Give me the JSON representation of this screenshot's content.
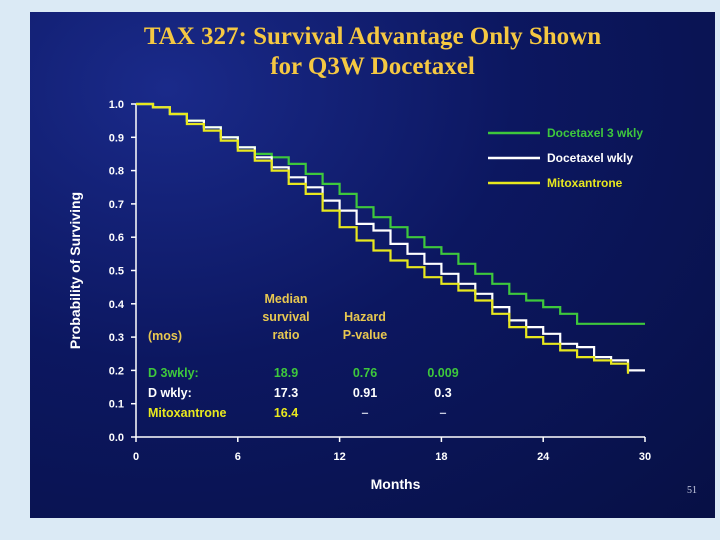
{
  "slide": {
    "title_line1": "TAX 327:  Survival Advantage Only Shown",
    "title_line2": "for Q3W Docetaxel",
    "slide_number": "51"
  },
  "colors": {
    "green": "#3ec83c",
    "white": "#ffffff",
    "yellow": "#e8e81e",
    "title": "#f5c842",
    "table_header": "#e8c850"
  },
  "chart_data": {
    "type": "line",
    "title": "TAX 327:  Survival Advantage Only Shown for Q3W Docetaxel",
    "xlabel": "Months",
    "ylabel": "Probability of Surviving",
    "xlim": [
      0,
      30
    ],
    "ylim": [
      0,
      1
    ],
    "x_ticks": [
      "0",
      "6",
      "12",
      "18",
      "24",
      "30"
    ],
    "y_ticks": [
      "0.0",
      "0.1",
      "0.2",
      "0.3",
      "0.4",
      "0.5",
      "0.6",
      "0.7",
      "0.8",
      "0.9",
      "1.0"
    ],
    "legend_position": "top-right",
    "series": [
      {
        "name": "Docetaxel 3 wkly",
        "color": "#3ec83c",
        "x": [
          0,
          1,
          2,
          3,
          4,
          5,
          6,
          7,
          8,
          9,
          10,
          11,
          12,
          13,
          14,
          15,
          16,
          17,
          18,
          19,
          20,
          21,
          22,
          23,
          24,
          25,
          26,
          27,
          28,
          29,
          30
        ],
        "y": [
          1.0,
          0.99,
          0.97,
          0.95,
          0.93,
          0.9,
          0.87,
          0.85,
          0.84,
          0.82,
          0.79,
          0.76,
          0.73,
          0.69,
          0.66,
          0.63,
          0.6,
          0.57,
          0.55,
          0.52,
          0.49,
          0.46,
          0.43,
          0.41,
          0.39,
          0.37,
          0.34,
          0.34,
          0.34,
          0.34,
          0.34
        ]
      },
      {
        "name": "Docetaxel wkly",
        "color": "#ffffff",
        "x": [
          0,
          1,
          2,
          3,
          4,
          5,
          6,
          7,
          8,
          9,
          10,
          11,
          12,
          13,
          14,
          15,
          16,
          17,
          18,
          19,
          20,
          21,
          22,
          23,
          24,
          25,
          26,
          27,
          28,
          29,
          30
        ],
        "y": [
          1.0,
          0.99,
          0.97,
          0.95,
          0.93,
          0.9,
          0.87,
          0.84,
          0.81,
          0.78,
          0.75,
          0.71,
          0.68,
          0.64,
          0.62,
          0.58,
          0.55,
          0.52,
          0.49,
          0.46,
          0.43,
          0.39,
          0.35,
          0.33,
          0.31,
          0.28,
          0.27,
          0.24,
          0.23,
          0.2,
          0.2
        ]
      },
      {
        "name": "Mitoxantrone",
        "color": "#e8e81e",
        "x": [
          0,
          1,
          2,
          3,
          4,
          5,
          6,
          7,
          8,
          9,
          10,
          11,
          12,
          13,
          14,
          15,
          16,
          17,
          18,
          19,
          20,
          21,
          22,
          23,
          24,
          25,
          26,
          27,
          28,
          29
        ],
        "y": [
          1.0,
          0.99,
          0.97,
          0.94,
          0.92,
          0.89,
          0.86,
          0.83,
          0.8,
          0.76,
          0.73,
          0.68,
          0.63,
          0.59,
          0.56,
          0.53,
          0.51,
          0.48,
          0.46,
          0.44,
          0.41,
          0.37,
          0.33,
          0.3,
          0.28,
          0.26,
          0.24,
          0.23,
          0.22,
          0.19
        ]
      }
    ],
    "table": {
      "unit_label": "(mos)",
      "headers": [
        {
          "line1": "Median",
          "line2": "survival",
          "line3": "ratio"
        },
        {
          "line1": "",
          "line2": "Hazard",
          "line3": "P-value"
        }
      ],
      "rows": [
        {
          "label": "D  3wkly:",
          "median": "18.9",
          "hazard": "0.76",
          "pvalue": "0.009",
          "color": "#3ec83c"
        },
        {
          "label": "D  wkly:",
          "median": "17.3",
          "hazard": "0.91",
          "pvalue": "0.3",
          "color": "#ffffff"
        },
        {
          "label": "Mitoxantrone",
          "median": "16.4",
          "hazard": "–",
          "pvalue": "–",
          "color": "#e8e81e"
        }
      ]
    }
  }
}
